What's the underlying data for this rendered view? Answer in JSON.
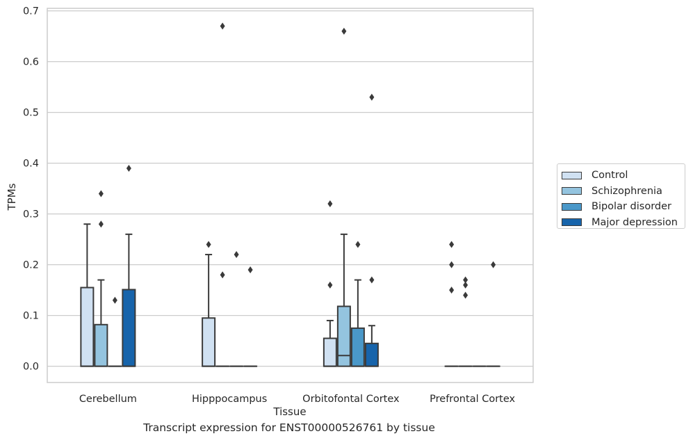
{
  "chart_data": {
    "type": "box",
    "xlabel": "Tissue",
    "ylabel": "TPMs",
    "ylim": [
      -0.032,
      0.705
    ],
    "yticks": [
      0.0,
      0.1,
      0.2,
      0.3,
      0.4,
      0.5,
      0.6,
      0.7
    ],
    "ytick_labels": [
      "0.0",
      "0.1",
      "0.2",
      "0.3",
      "0.4",
      "0.5",
      "0.6",
      "0.7"
    ],
    "grid": "horizontal",
    "legend_position": "right",
    "categories": [
      "Cerebellum",
      "Hipppocampus",
      "Orbitofontal Cortex",
      "Prefrontal Cortex"
    ],
    "series": [
      {
        "name": "Control",
        "color": "#d0e1f2",
        "boxes": [
          {
            "whislo": 0.0,
            "q1": 0.0,
            "med": 0.0,
            "q3": 0.155,
            "whishi": 0.28,
            "fliers": []
          },
          {
            "whislo": 0.0,
            "q1": 0.0,
            "med": 0.0,
            "q3": 0.095,
            "whishi": 0.22,
            "fliers": [
              0.24
            ]
          },
          {
            "whislo": 0.0,
            "q1": 0.0,
            "med": 0.0,
            "q3": 0.055,
            "whishi": 0.09,
            "fliers": [
              0.16,
              0.32
            ]
          },
          {
            "whislo": 0.0,
            "q1": 0.0,
            "med": 0.0,
            "q3": 0.0,
            "whishi": 0.0,
            "fliers": [
              0.15,
              0.2,
              0.24
            ]
          }
        ]
      },
      {
        "name": "Schizophrenia",
        "color": "#94c4df",
        "boxes": [
          {
            "whislo": 0.0,
            "q1": 0.0,
            "med": 0.0,
            "q3": 0.082,
            "whishi": 0.17,
            "fliers": [
              0.28,
              0.34
            ]
          },
          {
            "whislo": 0.0,
            "q1": 0.0,
            "med": 0.0,
            "q3": 0.0,
            "whishi": 0.0,
            "fliers": [
              0.18,
              0.67
            ]
          },
          {
            "whislo": 0.0,
            "q1": 0.0,
            "med": 0.021,
            "q3": 0.118,
            "whishi": 0.26,
            "fliers": [
              0.66
            ]
          },
          {
            "whislo": 0.0,
            "q1": 0.0,
            "med": 0.0,
            "q3": 0.0,
            "whishi": 0.0,
            "fliers": [
              0.14,
              0.16,
              0.17
            ]
          }
        ]
      },
      {
        "name": "Bipolar disorder",
        "color": "#4a98c9",
        "boxes": [
          {
            "whislo": 0.0,
            "q1": 0.0,
            "med": 0.0,
            "q3": 0.0,
            "whishi": 0.0,
            "fliers": [
              0.13
            ]
          },
          {
            "whislo": 0.0,
            "q1": 0.0,
            "med": 0.0,
            "q3": 0.0,
            "whishi": 0.0,
            "fliers": [
              0.22
            ]
          },
          {
            "whislo": 0.0,
            "q1": 0.0,
            "med": 0.0,
            "q3": 0.075,
            "whishi": 0.17,
            "fliers": [
              0.24
            ]
          },
          {
            "whislo": 0.0,
            "q1": 0.0,
            "med": 0.0,
            "q3": 0.0,
            "whishi": 0.0,
            "fliers": []
          }
        ]
      },
      {
        "name": "Major depression",
        "color": "#1764ab",
        "boxes": [
          {
            "whislo": 0.0,
            "q1": 0.0,
            "med": 0.0,
            "q3": 0.151,
            "whishi": 0.26,
            "fliers": [
              0.39
            ]
          },
          {
            "whislo": 0.0,
            "q1": 0.0,
            "med": 0.0,
            "q3": 0.0,
            "whishi": 0.0,
            "fliers": [
              0.19
            ]
          },
          {
            "whislo": 0.0,
            "q1": 0.0,
            "med": 0.0,
            "q3": 0.045,
            "whishi": 0.08,
            "fliers": [
              0.17,
              0.53
            ]
          },
          {
            "whislo": 0.0,
            "q1": 0.0,
            "med": 0.0,
            "q3": 0.0,
            "whishi": 0.0,
            "fliers": [
              0.2
            ]
          }
        ]
      }
    ]
  },
  "caption": "Transcript expression for ENST00000526761 by tissue",
  "colors": {
    "grid": "#cccccc",
    "frame": "#cccccc",
    "box_edge": "#3a3a3a",
    "text": "#262626"
  }
}
